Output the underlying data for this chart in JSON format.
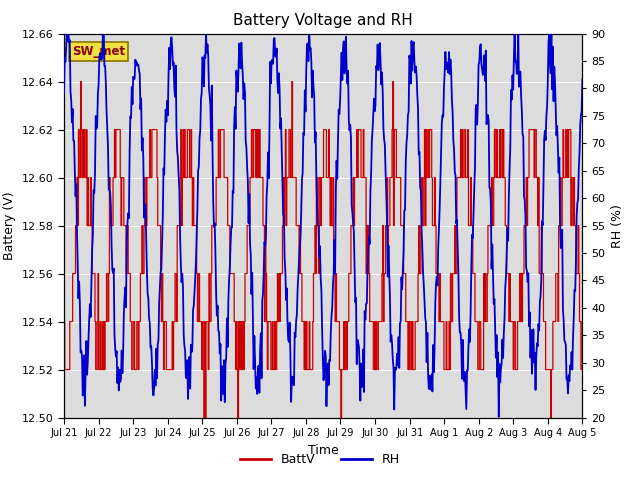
{
  "title": "Battery Voltage and RH",
  "xlabel": "Time",
  "ylabel_left": "Battery (V)",
  "ylabel_right": "RH (%)",
  "station_label": "SW_met",
  "ylim_left": [
    12.5,
    12.66
  ],
  "ylim_right": [
    20,
    90
  ],
  "yticks_left": [
    12.5,
    12.52,
    12.54,
    12.56,
    12.58,
    12.6,
    12.62,
    12.64,
    12.66
  ],
  "yticks_right": [
    20,
    25,
    30,
    35,
    40,
    45,
    50,
    55,
    60,
    65,
    70,
    75,
    80,
    85,
    90
  ],
  "xtick_labels": [
    "Jul 21",
    "Jul 22",
    "Jul 23",
    "Jul 24",
    "Jul 25",
    "Jul 26",
    "Jul 27",
    "Jul 28",
    "Jul 29",
    "Jul 30",
    "Jul 31",
    "Aug 1",
    "Aug 2",
    "Aug 3",
    "Aug 4",
    "Aug 5"
  ],
  "batt_color": "#cc0000",
  "rh_color": "#0000cc",
  "plot_bg_color": "#dcdcdc",
  "legend_batt": "BattV",
  "legend_rh": "RH",
  "title_fontsize": 11,
  "axis_label_fontsize": 9,
  "tick_fontsize": 8,
  "n_days": 15,
  "batt_base": 12.57,
  "batt_amp": 0.045,
  "rh_base": 57,
  "rh_amp": 30
}
